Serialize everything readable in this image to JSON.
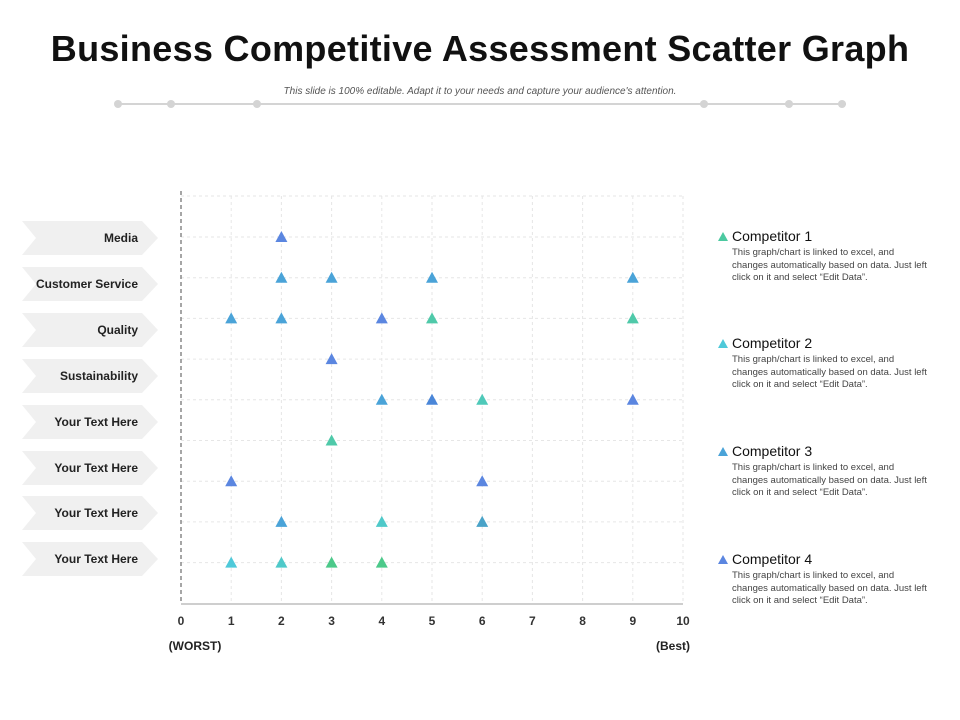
{
  "title": "Business Competitive Assessment Scatter Graph",
  "subtitle": "This slide is 100% editable. Adapt it to your needs and capture your audience's attention.",
  "row_labels": [
    "Media",
    "Customer Service",
    "Quality",
    "Sustainability",
    "Your Text Here",
    "Your Text Here",
    "Your Text Here",
    "Your Text Here"
  ],
  "legend": [
    {
      "name": "Competitor 1",
      "color": "#4cc9a0",
      "desc": "This graph/chart is linked to excel, and changes automatically based on data. Just left click on it and select “Edit Data”."
    },
    {
      "name": "Competitor 2",
      "color": "#4fc9d9",
      "desc": "This graph/chart is linked to excel, and changes automatically based on data. Just left click on it and select “Edit Data”."
    },
    {
      "name": "Competitor 3",
      "color": "#4aa3d8",
      "desc": "This graph/chart is linked to excel, and changes automatically based on data. Just left click on it and select “Edit Data”."
    },
    {
      "name": "Competitor 4",
      "color": "#5b86e0",
      "desc": "This graph/chart is linked to excel, and changes automatically based on data. Just left click on it and select “Edit Data”."
    }
  ],
  "chart_data": {
    "type": "scatter",
    "xlabel_left": "(WORST)",
    "xlabel_right": "(Best)",
    "xlim": [
      0,
      10
    ],
    "xticks": [
      "0",
      "1",
      "2",
      "3",
      "4",
      "5",
      "6",
      "7",
      "8",
      "9",
      "10"
    ],
    "grid": true,
    "legend_position": "right",
    "categories": [
      "Media",
      "Customer Service",
      "Quality",
      "Sustainability",
      "Your Text Here",
      "Your Text Here",
      "Your Text Here",
      "Your Text Here"
    ],
    "points": [
      {
        "row": 0,
        "x": 2,
        "color": "#5b86e0"
      },
      {
        "row": 1,
        "x": 2,
        "color": "#4aa3d8"
      },
      {
        "row": 1,
        "x": 3,
        "color": "#4aa3d8"
      },
      {
        "row": 1,
        "x": 5,
        "color": "#4aa3d8"
      },
      {
        "row": 1,
        "x": 9,
        "color": "#4aa3d8"
      },
      {
        "row": 2,
        "x": 1,
        "color": "#4aa3d8"
      },
      {
        "row": 2,
        "x": 2,
        "color": "#4aa3d8"
      },
      {
        "row": 2,
        "x": 4,
        "color": "#5b86e0"
      },
      {
        "row": 2,
        "x": 5,
        "color": "#4fc9a9"
      },
      {
        "row": 2,
        "x": 9,
        "color": "#4fc9a9"
      },
      {
        "row": 3,
        "x": 3,
        "color": "#5b86e0"
      },
      {
        "row": 4,
        "x": 4,
        "color": "#4aa3d8"
      },
      {
        "row": 4,
        "x": 5,
        "color": "#4a86d8"
      },
      {
        "row": 4,
        "x": 6,
        "color": "#4fc9b9"
      },
      {
        "row": 4,
        "x": 9,
        "color": "#5b86e0"
      },
      {
        "row": 5,
        "x": 3,
        "color": "#4fc9a9"
      },
      {
        "row": 6,
        "x": 1,
        "color": "#5b86e0"
      },
      {
        "row": 6,
        "x": 6,
        "color": "#5b86e0"
      },
      {
        "row": 7,
        "x": 2,
        "color": "#4aa3d8"
      },
      {
        "row": 7,
        "x": 4,
        "color": "#4fc9c9"
      },
      {
        "row": 7,
        "x": 6,
        "color": "#4aa3c8"
      },
      {
        "row": 8,
        "x": 1,
        "color": "#4fc9d9"
      },
      {
        "row": 8,
        "x": 2,
        "color": "#4fc9c9"
      },
      {
        "row": 8,
        "x": 3,
        "color": "#4cc98a"
      },
      {
        "row": 8,
        "x": 4,
        "color": "#4cc98a"
      }
    ]
  }
}
